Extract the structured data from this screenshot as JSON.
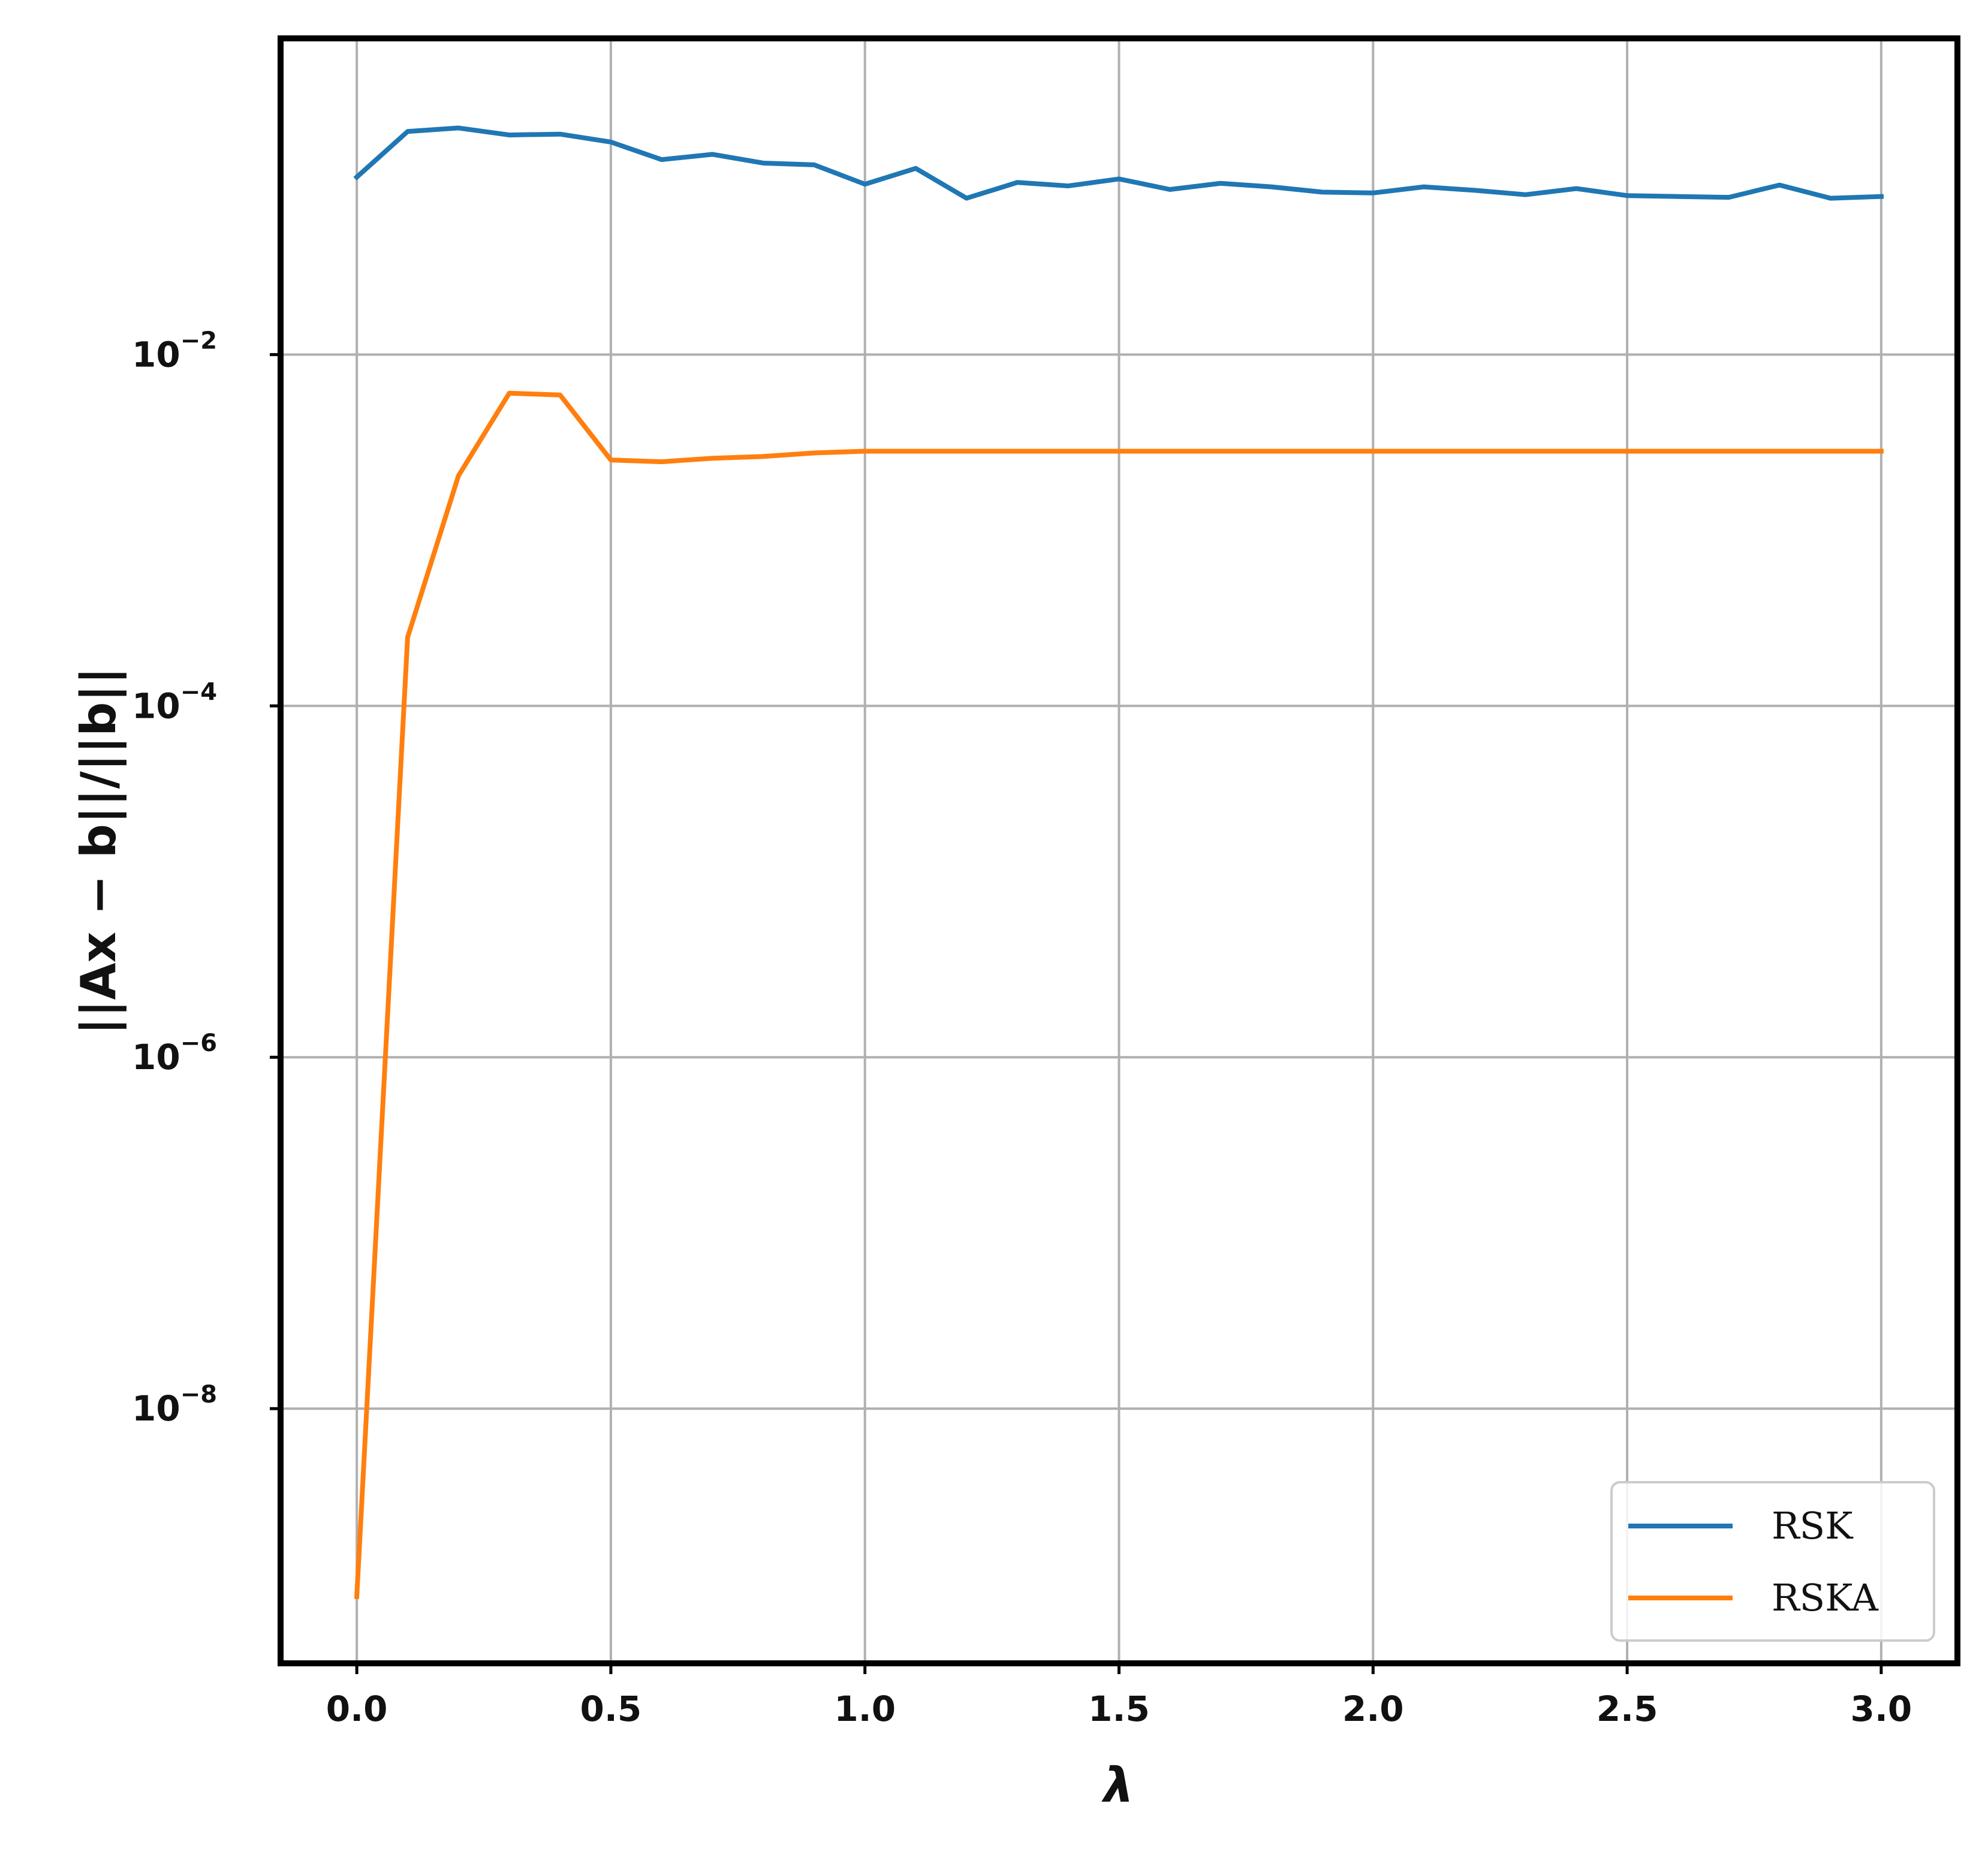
{
  "chart_data": {
    "type": "line",
    "xlabel": "λ",
    "ylabel": "||Ax − b||/||b||",
    "ylog": true,
    "xlim": [
      -0.15,
      3.15
    ],
    "ylim_exp": [
      -9.45,
      -0.2
    ],
    "grid": true,
    "legend_position": "bottom-right",
    "x_ticks": [
      "0.0",
      "0.5",
      "1.0",
      "1.5",
      "2.0",
      "2.5",
      "3.0"
    ],
    "y_ticks": [
      {
        "base": "10",
        "exp": "−2",
        "value_exp": -2
      },
      {
        "base": "10",
        "exp": "−4",
        "value_exp": -4
      },
      {
        "base": "10",
        "exp": "−6",
        "value_exp": -6
      },
      {
        "base": "10",
        "exp": "−8",
        "value_exp": -8
      }
    ],
    "x": [
      0.0,
      0.1,
      0.2,
      0.3,
      0.4,
      0.5,
      0.6,
      0.7,
      0.8,
      0.9,
      1.0,
      1.1,
      1.2,
      1.3,
      1.4,
      1.5,
      1.6,
      1.7,
      1.8,
      1.9,
      2.0,
      2.1,
      2.2,
      2.3,
      2.4,
      2.5,
      2.6,
      2.7,
      2.8,
      2.9,
      3.0
    ],
    "series": [
      {
        "name": "RSK",
        "color": "#1f77b4",
        "y_log10": [
          -0.99,
          -0.73,
          -0.71,
          -0.75,
          -0.745,
          -0.79,
          -0.89,
          -0.86,
          -0.91,
          -0.92,
          -1.03,
          -0.94,
          -1.11,
          -1.02,
          -1.04,
          -1.0,
          -1.06,
          -1.025,
          -1.045,
          -1.075,
          -1.08,
          -1.045,
          -1.065,
          -1.09,
          -1.055,
          -1.095,
          -1.1,
          -1.105,
          -1.035,
          -1.11,
          -1.1
        ]
      },
      {
        "name": "RSKA",
        "color": "#ff7f0e",
        "y_log10": [
          -9.07,
          -3.61,
          -2.69,
          -2.22,
          -2.23,
          -2.6,
          -2.61,
          -2.59,
          -2.58,
          -2.56,
          -2.55,
          -2.55,
          -2.55,
          -2.55,
          -2.55,
          -2.55,
          -2.55,
          -2.55,
          -2.55,
          -2.55,
          -2.55,
          -2.55,
          -2.55,
          -2.55,
          -2.55,
          -2.55,
          -2.55,
          -2.55,
          -2.55,
          -2.55,
          -2.55
        ]
      }
    ]
  }
}
